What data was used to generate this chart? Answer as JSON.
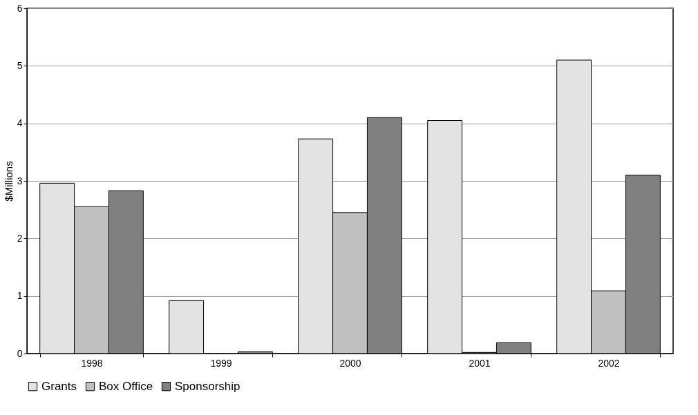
{
  "chart_data": {
    "type": "bar",
    "ylabel": "$Millions",
    "categories": [
      "1998",
      "1999",
      "2000",
      "2001",
      "2002"
    ],
    "series": [
      {
        "name": "Grants",
        "color": "#e3e3e3",
        "values": [
          2.96,
          0.92,
          3.73,
          4.05,
          5.1
        ]
      },
      {
        "name": "Box Office",
        "color": "#c0c0c0",
        "values": [
          2.55,
          null,
          2.45,
          0.02,
          1.09
        ]
      },
      {
        "name": "Sponsorship",
        "color": "#808080",
        "values": [
          2.83,
          0.03,
          4.1,
          0.19,
          3.1
        ]
      }
    ],
    "ylim": [
      0,
      6
    ],
    "yticks": [
      0,
      1,
      2,
      3,
      4,
      5,
      6
    ],
    "grid": "y",
    "legend": "bottom"
  }
}
